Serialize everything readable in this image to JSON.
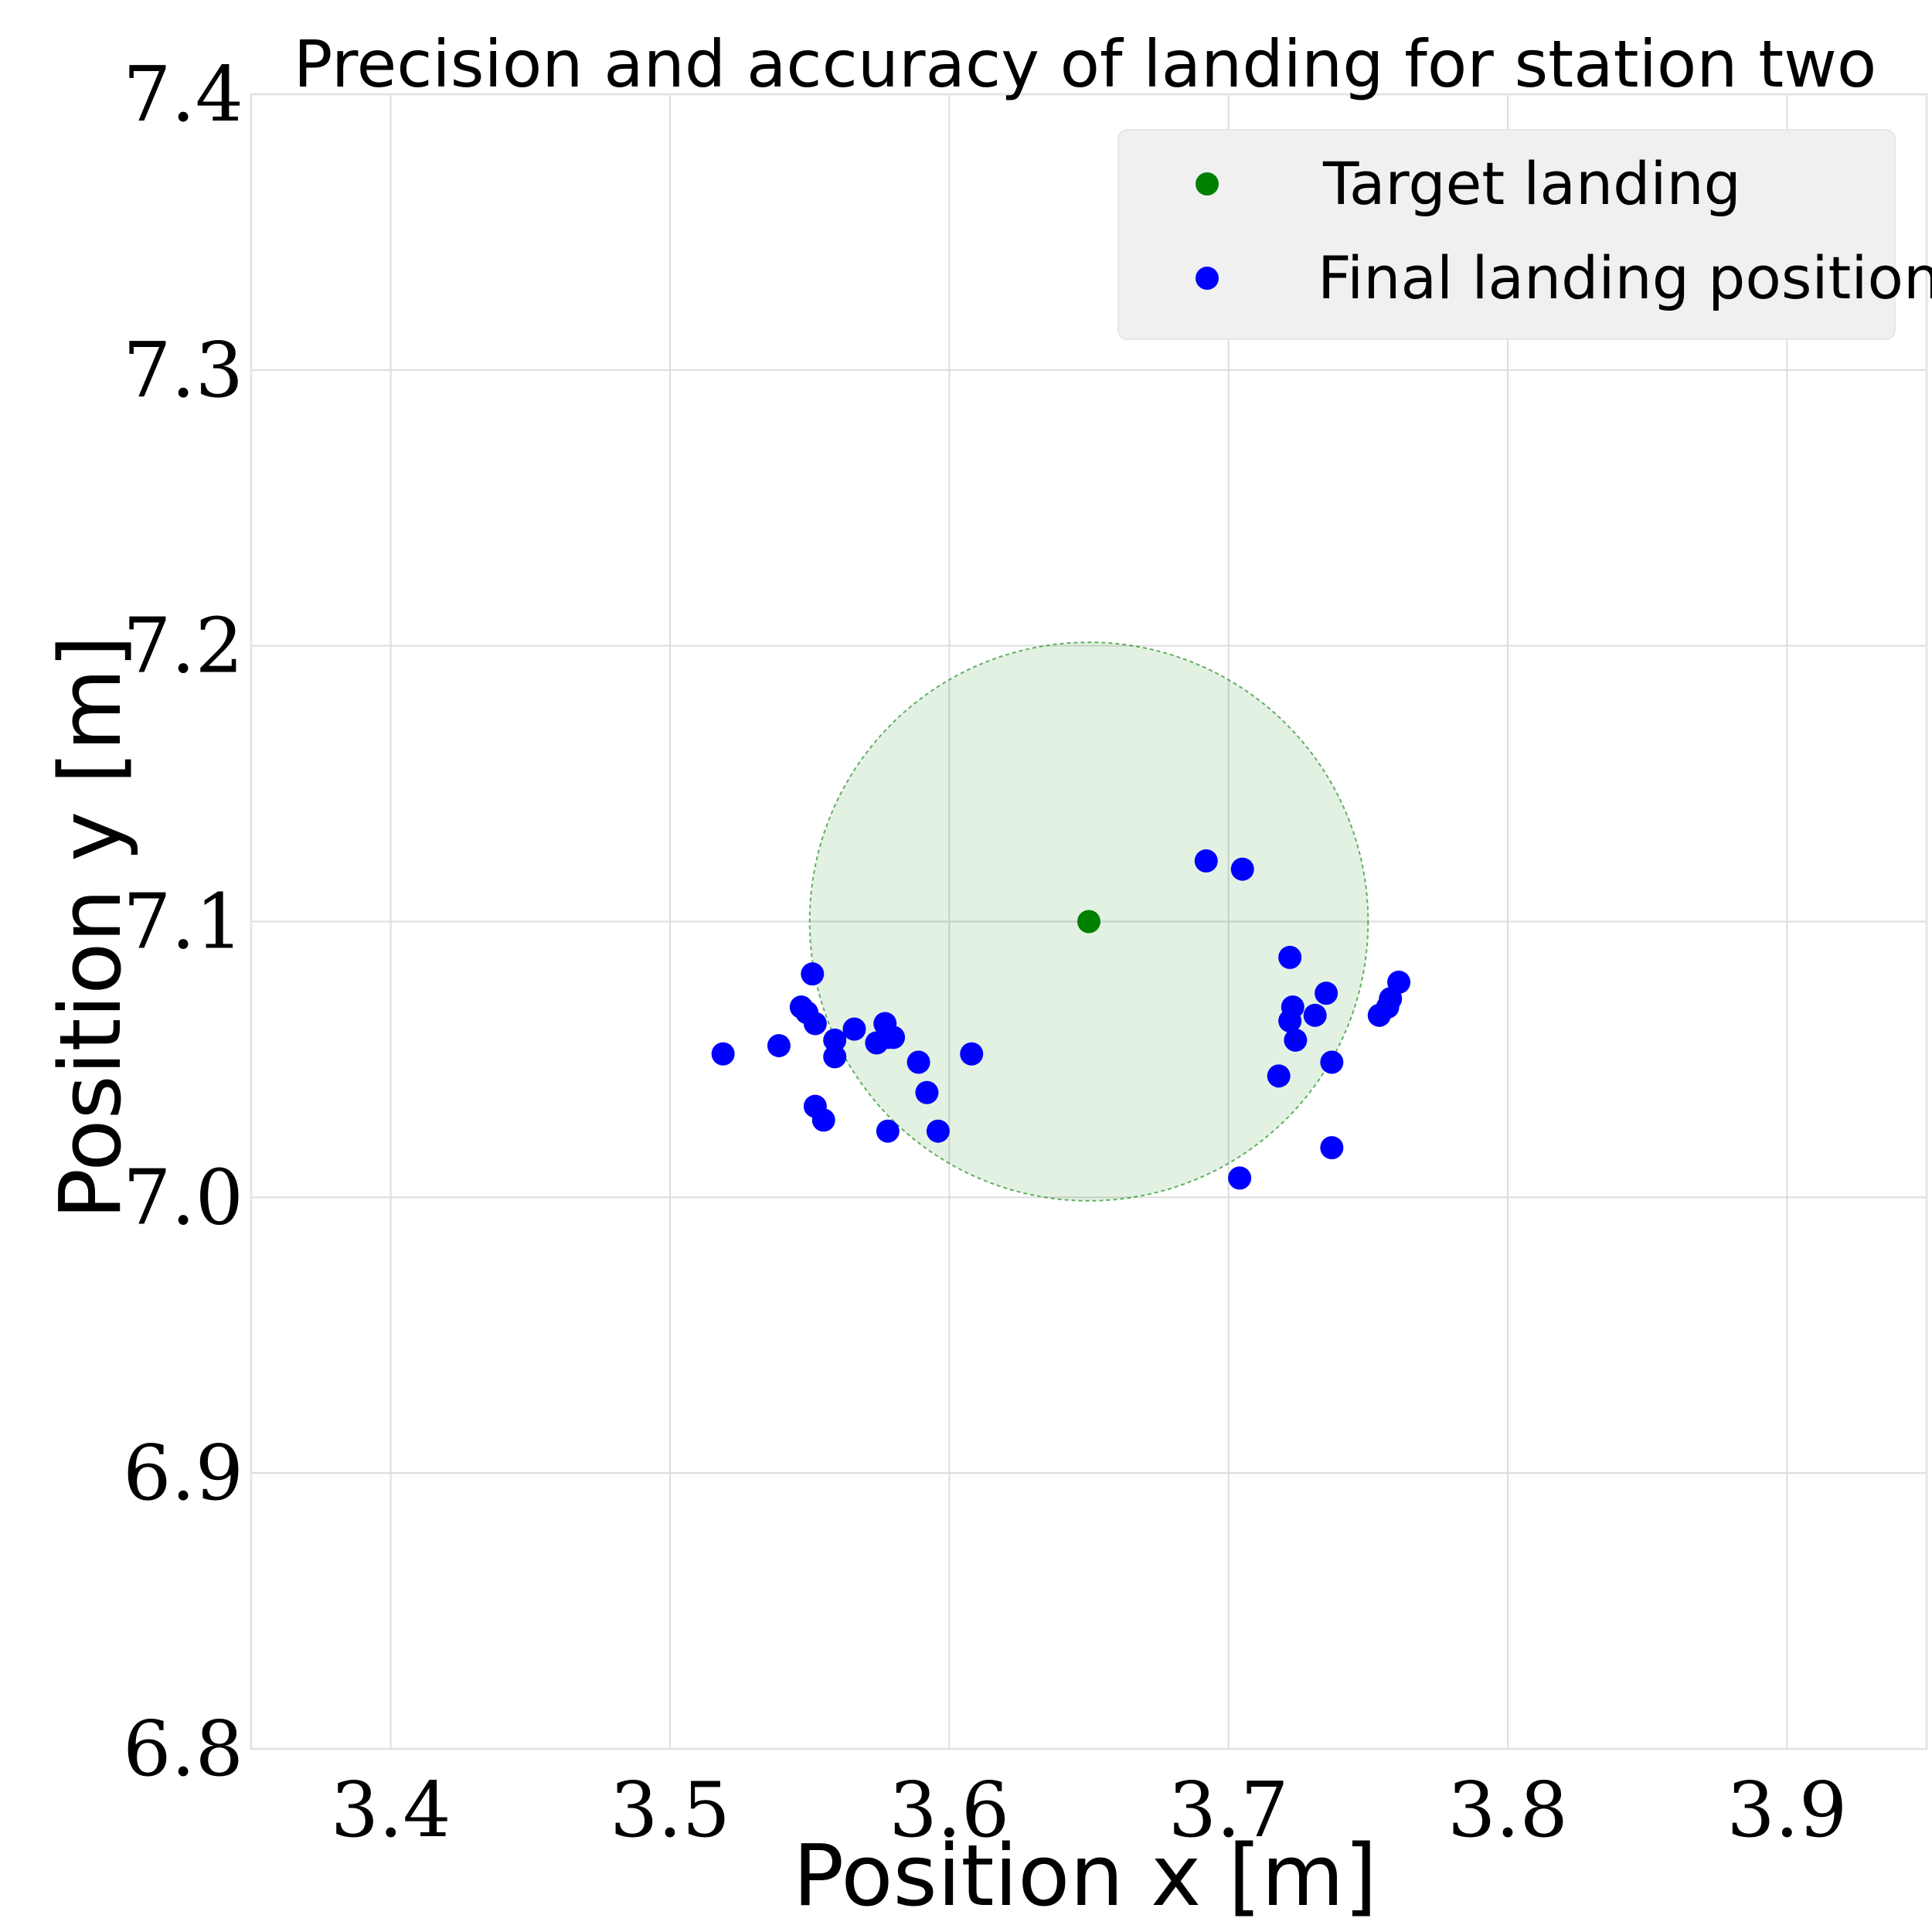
{
  "chart_data": {
    "type": "scatter",
    "title": "Precision and accuracy of landing for station two",
    "xlabel": "Position x [m]",
    "ylabel": "Position y [m]",
    "xlim": [
      3.35,
      3.95
    ],
    "ylim": [
      6.8,
      7.4
    ],
    "xticks": [
      "3.4",
      "3.5",
      "3.6",
      "3.7",
      "3.8",
      "3.9"
    ],
    "yticks": [
      "6.8",
      "6.9",
      "7.0",
      "7.1",
      "7.2",
      "7.3",
      "7.4"
    ],
    "grid": true,
    "legend_position": "top-right",
    "tolerance_circle": {
      "center": [
        3.65,
        7.1
      ],
      "radius": 0.1,
      "color": "#008000"
    },
    "series": [
      {
        "name": "Target landing",
        "color": "#008000",
        "points": [
          [
            3.65,
            7.1
          ]
        ]
      },
      {
        "name": "Final landing position",
        "color": "#0000ff",
        "points": [
          [
            3.519,
            7.052
          ],
          [
            3.539,
            7.055
          ],
          [
            3.547,
            7.069
          ],
          [
            3.549,
            7.067
          ],
          [
            3.551,
            7.081
          ],
          [
            3.552,
            7.063
          ],
          [
            3.552,
            7.033
          ],
          [
            3.555,
            7.028
          ],
          [
            3.559,
            7.057
          ],
          [
            3.559,
            7.051
          ],
          [
            3.566,
            7.061
          ],
          [
            3.574,
            7.056
          ],
          [
            3.577,
            7.063
          ],
          [
            3.578,
            7.058
          ],
          [
            3.58,
            7.058
          ],
          [
            3.578,
            7.024
          ],
          [
            3.589,
            7.049
          ],
          [
            3.592,
            7.038
          ],
          [
            3.596,
            7.024
          ],
          [
            3.608,
            7.052
          ],
          [
            3.692,
            7.122
          ],
          [
            3.705,
            7.119
          ],
          [
            3.704,
            7.007
          ],
          [
            3.718,
            7.044
          ],
          [
            3.722,
            7.087
          ],
          [
            3.722,
            7.064
          ],
          [
            3.723,
            7.069
          ],
          [
            3.724,
            7.057
          ],
          [
            3.731,
            7.066
          ],
          [
            3.735,
            7.074
          ],
          [
            3.737,
            7.049
          ],
          [
            3.737,
            7.018
          ],
          [
            3.754,
            7.066
          ],
          [
            3.757,
            7.069
          ],
          [
            3.758,
            7.072
          ],
          [
            3.761,
            7.078
          ]
        ]
      }
    ]
  }
}
